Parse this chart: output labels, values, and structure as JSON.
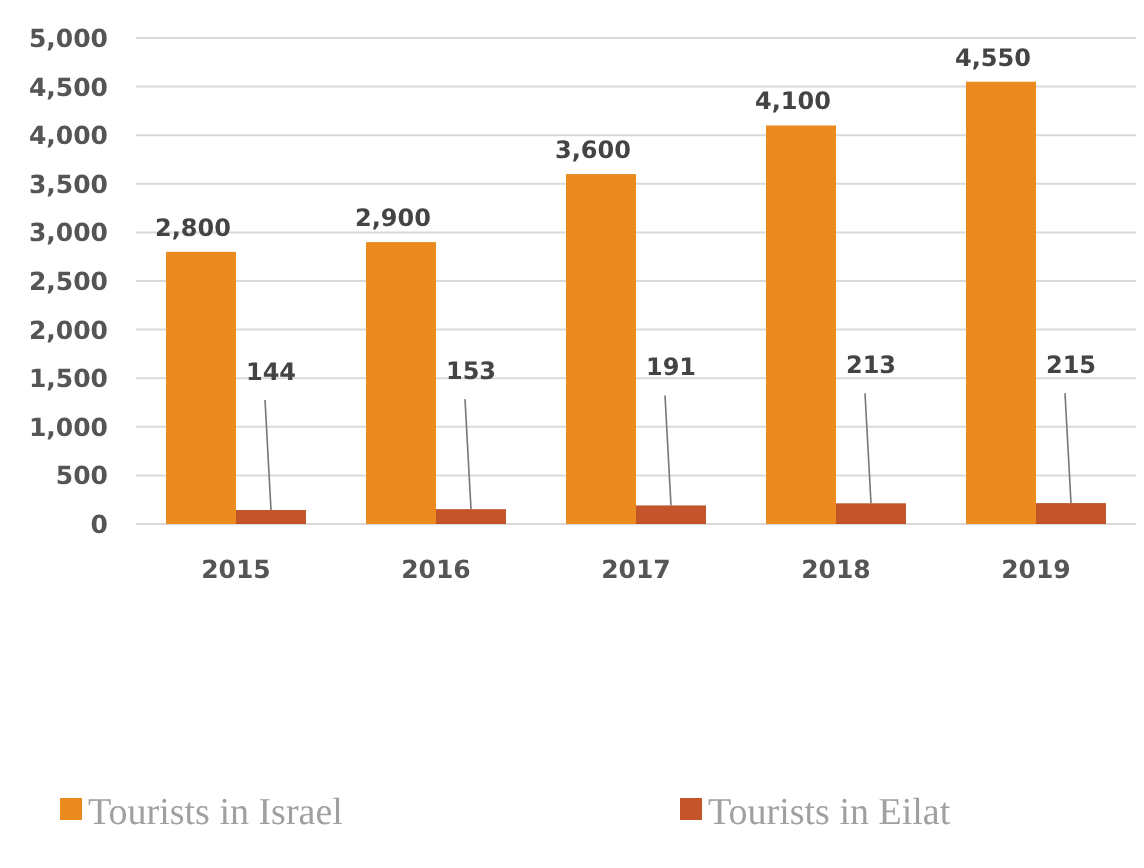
{
  "chart_data": {
    "type": "bar",
    "categories": [
      "2015",
      "2016",
      "2017",
      "2018",
      "2019"
    ],
    "series": [
      {
        "name": "Tourists in Israel",
        "color": "#ea8a1f",
        "values": [
          2800,
          2900,
          3600,
          4100,
          4550
        ],
        "value_labels": [
          "2,800",
          "2,900",
          "3,600",
          "4,100",
          "4,550"
        ]
      },
      {
        "name": "Tourists in Eilat",
        "color": "#c4552a",
        "values": [
          144,
          153,
          191,
          213,
          215
        ],
        "value_labels": [
          "144",
          "153",
          "191",
          "213",
          "215"
        ]
      }
    ],
    "ylim": [
      0,
      5000
    ],
    "yticks": [
      0,
      {
        "value": 500,
        "label": "500"
      },
      {
        "value": 1000,
        "label": "1,000"
      },
      {
        "value": 1500,
        "label": "1,500"
      },
      {
        "value": 2000,
        "label": "2,000"
      },
      {
        "value": 2500,
        "label": "2,500"
      },
      {
        "value": 3000,
        "label": "3,000"
      },
      {
        "value": 3500,
        "label": "3,500"
      },
      {
        "value": 4000,
        "label": "4,000"
      },
      {
        "value": 4500,
        "label": "4,500"
      },
      {
        "value": 5000,
        "label": "5,000"
      }
    ],
    "grid": "y",
    "legend": "bottom"
  }
}
